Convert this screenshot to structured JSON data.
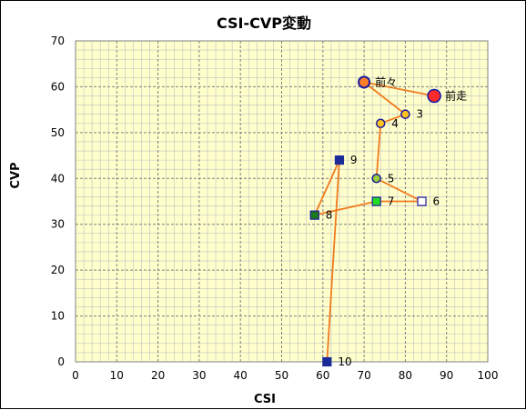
{
  "chart_data": {
    "type": "scatter",
    "title": "CSI-CVP変動",
    "xlabel": "CSI",
    "ylabel": "CVP",
    "xlim": [
      0,
      100
    ],
    "ylim": [
      0,
      70
    ],
    "xticks": [
      "0",
      "10",
      "20",
      "30",
      "40",
      "50",
      "60",
      "70",
      "80",
      "90",
      "100"
    ],
    "yticks": [
      "0",
      "10",
      "20",
      "30",
      "40",
      "50",
      "60",
      "70"
    ],
    "grid": true,
    "legend": "none",
    "colors": {
      "plot_background": "#ffffcc",
      "line": "#f07a1e",
      "major_grid": "#808080",
      "minor_grid": "#c0c0c0"
    },
    "points": [
      {
        "label": "前走",
        "x": 87,
        "y": 58,
        "marker": "circle-large",
        "fill": "#ff2a2a",
        "stroke": "#0a1aa8"
      },
      {
        "label": "前々",
        "x": 70,
        "y": 61,
        "marker": "circle",
        "fill": "#ff7f27",
        "stroke": "#1a1aa0"
      },
      {
        "label": "3",
        "x": 80,
        "y": 54,
        "marker": "circle-small",
        "fill": "#ffc21e",
        "stroke": "#1a1aa0"
      },
      {
        "label": "4",
        "x": 74,
        "y": 52,
        "marker": "circle-small",
        "fill": "#ffc21e",
        "stroke": "#1a1aa0"
      },
      {
        "label": "5",
        "x": 73,
        "y": 40,
        "marker": "circle-small",
        "fill": "#9acd32",
        "stroke": "#1a1aa0"
      },
      {
        "label": "6",
        "x": 84,
        "y": 35,
        "marker": "square",
        "fill": "#ffffff",
        "stroke": "#1a1aa0"
      },
      {
        "label": "7",
        "x": 73,
        "y": 35,
        "marker": "square",
        "fill": "#22dd22",
        "stroke": "#1a1aa0"
      },
      {
        "label": "8",
        "x": 58,
        "y": 32,
        "marker": "square",
        "fill": "#1a7a1a",
        "stroke": "#1a1aa0"
      },
      {
        "label": "9",
        "x": 64,
        "y": 44,
        "marker": "square",
        "fill": "#1a2a99",
        "stroke": "#1a2a99"
      },
      {
        "label": "10",
        "x": 61,
        "y": 0,
        "marker": "square",
        "fill": "#1a2a99",
        "stroke": "#1a2a99"
      }
    ]
  }
}
